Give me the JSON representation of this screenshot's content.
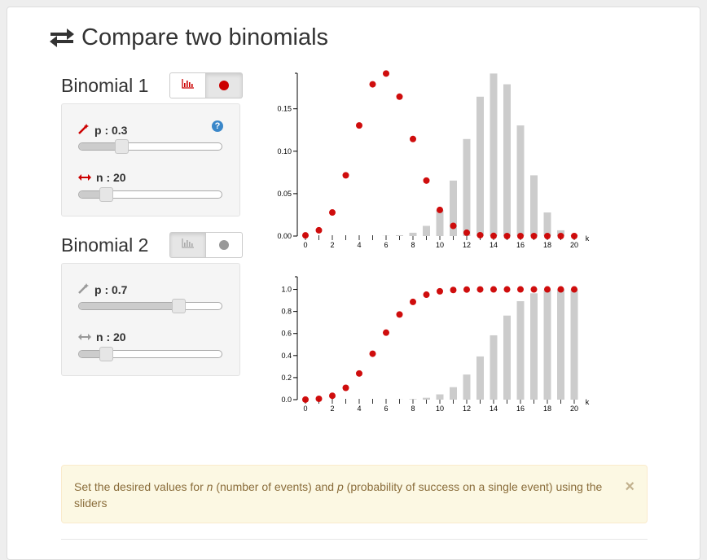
{
  "header": {
    "title": "Compare two binomials",
    "icon": "exchange-icon"
  },
  "binomial1": {
    "title": "Binomial 1",
    "toggle": {
      "bars_icon": "bar-chart-icon",
      "dots_icon": "circle-icon",
      "active": "dots"
    },
    "p": {
      "label": "p : 0.3",
      "value": 0.3,
      "icon": "magic-wand-icon"
    },
    "n": {
      "label": "n : 20",
      "value": 20,
      "min": 1,
      "max": 100,
      "icon": "arrows-h-icon"
    },
    "help": "?",
    "color": "#cc0000"
  },
  "binomial2": {
    "title": "Binomial 2",
    "toggle": {
      "bars_icon": "bar-chart-icon",
      "dots_icon": "circle-icon",
      "active": "bars"
    },
    "p": {
      "label": "p : 0.7",
      "value": 0.7,
      "icon": "magic-wand-icon"
    },
    "n": {
      "label": "n : 20",
      "value": 20,
      "min": 1,
      "max": 100,
      "icon": "arrows-h-icon"
    },
    "color": "#cccccc"
  },
  "chart_data": [
    {
      "type": "bar",
      "xlabel": "k",
      "ylim": [
        0,
        0.19
      ],
      "yticks": [
        "0.00",
        "0.05",
        "0.10",
        "0.15"
      ],
      "xticks": [
        "0",
        "2",
        "4",
        "6",
        "8",
        "10",
        "12",
        "14",
        "16",
        "18",
        "20"
      ],
      "x": [
        0,
        1,
        2,
        3,
        4,
        5,
        6,
        7,
        8,
        9,
        10,
        11,
        12,
        13,
        14,
        15,
        16,
        17,
        18,
        19,
        20
      ],
      "series": [
        {
          "values": [
            0.0008,
            0.0068,
            0.0278,
            0.0716,
            0.1304,
            0.1789,
            0.1916,
            0.1643,
            0.1144,
            0.0654,
            0.0308,
            0.012,
            0.0039,
            0.001,
            0.0002,
            0.0,
            0.0,
            0.0,
            0.0,
            0.0,
            0.0
          ],
          "style": "dots",
          "color": "#cc0000"
        },
        {
          "values": [
            0.0,
            0.0,
            0.0,
            0.0,
            0.0,
            0.0,
            0.0002,
            0.001,
            0.0039,
            0.012,
            0.0308,
            0.0654,
            0.1144,
            0.1643,
            0.1916,
            0.1789,
            0.1304,
            0.0716,
            0.0278,
            0.0068,
            0.0008
          ],
          "style": "bars",
          "color": "#cccccc"
        }
      ]
    },
    {
      "type": "bar",
      "xlabel": "k",
      "ylim": [
        0,
        1.1
      ],
      "yticks": [
        "0.0",
        "0.2",
        "0.4",
        "0.6",
        "0.8",
        "1.0"
      ],
      "xticks": [
        "0",
        "2",
        "4",
        "6",
        "8",
        "10",
        "12",
        "14",
        "16",
        "18",
        "20"
      ],
      "x": [
        0,
        1,
        2,
        3,
        4,
        5,
        6,
        7,
        8,
        9,
        10,
        11,
        12,
        13,
        14,
        15,
        16,
        17,
        18,
        19,
        20
      ],
      "series": [
        {
          "values": [
            0.0008,
            0.0076,
            0.0355,
            0.1071,
            0.2375,
            0.4164,
            0.608,
            0.7723,
            0.8867,
            0.952,
            0.9829,
            0.9949,
            0.9987,
            0.9997,
            1.0,
            1.0,
            1.0,
            1.0,
            1.0,
            1.0,
            1.0
          ],
          "style": "dots",
          "color": "#cc0000"
        },
        {
          "values": [
            0.0,
            0.0,
            0.0,
            0.0,
            0.0,
            0.0,
            0.0003,
            0.0013,
            0.0051,
            0.0171,
            0.048,
            0.1133,
            0.2277,
            0.392,
            0.5836,
            0.7625,
            0.8929,
            0.9645,
            0.9924,
            0.9992,
            1.0
          ],
          "style": "bars",
          "color": "#cccccc"
        }
      ]
    }
  ],
  "alert": {
    "text_before_n": "Set the desired values for ",
    "n_symbol": "n",
    "text_mid": " (number of events) and ",
    "p_symbol": "p",
    "text_after": " (probability of success on a single event) using the sliders",
    "close": "×"
  }
}
